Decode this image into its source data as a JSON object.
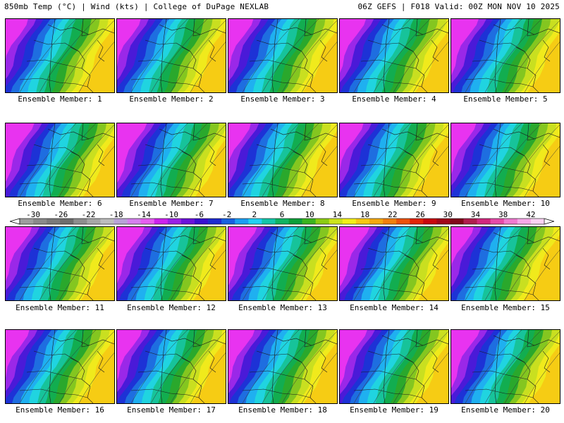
{
  "header": {
    "left_title": "850mb Temp (°C) | Wind (kts) | College of DuPage NEXLAB",
    "right_title": "06Z GEFS | F018 Valid: 00Z MON NOV 10 2025"
  },
  "colorbar": {
    "ticks": [
      "-30",
      "-26",
      "-22",
      "-18",
      "-14",
      "-10",
      "-6",
      "-2",
      "2",
      "6",
      "10",
      "14",
      "18",
      "22",
      "26",
      "30",
      "34",
      "38",
      "42"
    ],
    "colors": [
      "#9e9e9e",
      "#8a8a8a",
      "#7a7a7a",
      "#6e6e6e",
      "#8e8e8e",
      "#a7a7a7",
      "#bdbdbd",
      "#b9a3d8",
      "#d580ee",
      "#e65ef0",
      "#cc22ee",
      "#9a1fe6",
      "#6b12da",
      "#3a10d0",
      "#1d2bd0",
      "#1860e0",
      "#1c9ef2",
      "#22d0f2",
      "#14c6a8",
      "#10b462",
      "#0ca03a",
      "#3ab41e",
      "#8ccc12",
      "#cde41a",
      "#f3ef18",
      "#f7c812",
      "#f4a80e",
      "#f2800c",
      "#ec520a",
      "#e22408",
      "#c8060e",
      "#a2061a",
      "#82081a",
      "#b01e4e",
      "#d2287e",
      "#e64aa8",
      "#f07ad0",
      "#f7a8e8",
      "#fbd2f4"
    ]
  },
  "members": [
    {
      "label": "Ensemble Member: 1"
    },
    {
      "label": "Ensemble Member: 2"
    },
    {
      "label": "Ensemble Member: 3"
    },
    {
      "label": "Ensemble Member: 4"
    },
    {
      "label": "Ensemble Member: 5"
    },
    {
      "label": "Ensemble Member: 6"
    },
    {
      "label": "Ensemble Member: 7"
    },
    {
      "label": "Ensemble Member: 8"
    },
    {
      "label": "Ensemble Member: 9"
    },
    {
      "label": "Ensemble Member: 10"
    },
    {
      "label": "Ensemble Member: 11"
    },
    {
      "label": "Ensemble Member: 12"
    },
    {
      "label": "Ensemble Member: 13"
    },
    {
      "label": "Ensemble Member: 14"
    },
    {
      "label": "Ensemble Member: 15"
    },
    {
      "label": "Ensemble Member: 16"
    },
    {
      "label": "Ensemble Member: 17"
    },
    {
      "label": "Ensemble Member: 18"
    },
    {
      "label": "Ensemble Member: 19"
    },
    {
      "label": "Ensemble Member: 20"
    }
  ],
  "map_bands": [
    "#e833f0",
    "#9a28e8",
    "#4a1ad8",
    "#1d32d6",
    "#1e6ee0",
    "#1fb0f0",
    "#20d4e0",
    "#17c39a",
    "#12ad50",
    "#2aa82c",
    "#84c620",
    "#c9df20",
    "#f0ea1c",
    "#f6cc14"
  ]
}
